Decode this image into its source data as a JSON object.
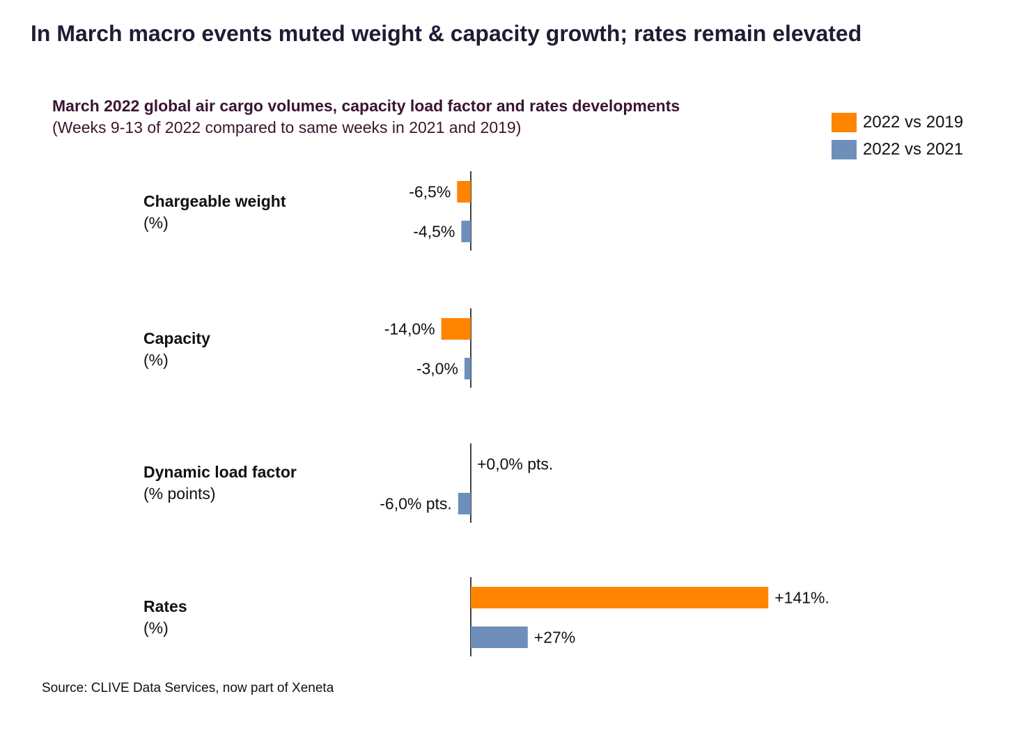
{
  "headline": "In March macro events muted weight & capacity growth; rates remain elevated",
  "source": "Source: CLIVE Data Services, now part of Xeneta",
  "colors": {
    "series_2019": "#ff8400",
    "series_2021": "#6f8fbb",
    "text": "#111111",
    "title": "#1f1c33",
    "subtitle": "#3b1530"
  },
  "chart_data": {
    "type": "bar",
    "orientation": "horizontal",
    "title": "March 2022 global air cargo volumes, capacity load factor and rates developments",
    "subtitle": "(Weeks 9-13 of 2022 compared to same weeks in 2021 and 2019)",
    "legend_position": "top-right",
    "grid": false,
    "categories": [
      {
        "title": "Chargeable weight",
        "unit": "(%)"
      },
      {
        "title": "Capacity",
        "unit": "(%)"
      },
      {
        "title": "Dynamic load factor",
        "unit": "(% points)"
      },
      {
        "title": "Rates",
        "unit": "(%)"
      }
    ],
    "series": [
      {
        "name": "2022 vs 2019",
        "color": "#ff8400",
        "values": [
          -6.5,
          -14.0,
          0.0,
          141
        ],
        "labels": [
          "-6,5%",
          "-14,0%",
          "+0,0% pts.",
          "+141%."
        ]
      },
      {
        "name": "2022 vs 2021",
        "color": "#6f8fbb",
        "values": [
          -4.5,
          -3.0,
          -6.0,
          27
        ],
        "labels": [
          "-4,5%",
          "-3,0%",
          "-6,0% pts.",
          "+27%"
        ]
      }
    ]
  }
}
